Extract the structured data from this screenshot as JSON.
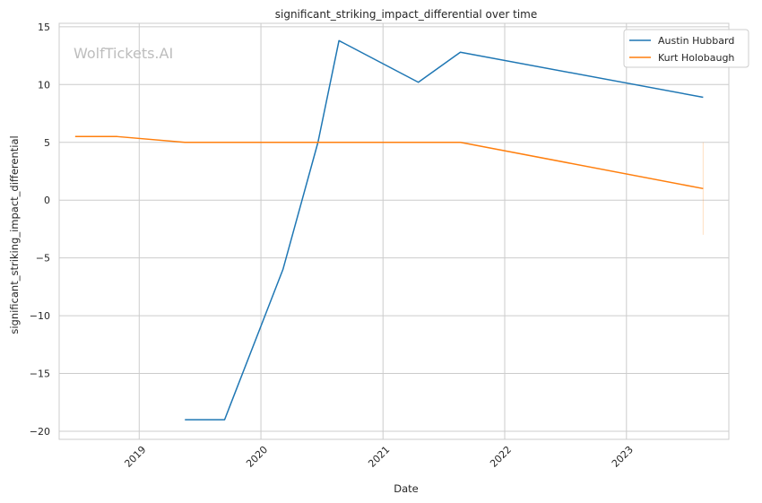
{
  "chart_data": {
    "type": "line",
    "title": "significant_striking_impact_differential over time",
    "xlabel": "Date",
    "ylabel": "significant_striking_impact_differential",
    "watermark": "WolfTickets.AI",
    "x_ticks": [
      "2019",
      "2020",
      "2021",
      "2022",
      "2023"
    ],
    "y_ticks": [
      15,
      10,
      5,
      0,
      -5,
      -10,
      -15,
      -20
    ],
    "xlim": [
      "2018-05-06",
      "2023-11-04"
    ],
    "ylim": [
      -20.7,
      15.3
    ],
    "grid": true,
    "legend_position": "top-right",
    "series": [
      {
        "name": "Austin Hubbard",
        "color": "#1f77b4",
        "points": [
          {
            "x": "2019-05-18",
            "y": -19
          },
          {
            "x": "2019-09-14",
            "y": -19
          },
          {
            "x": "2020-03-07",
            "y": -6
          },
          {
            "x": "2020-06-20",
            "y": 5
          },
          {
            "x": "2020-08-22",
            "y": 13.8
          },
          {
            "x": "2021-04-17",
            "y": 10.2
          },
          {
            "x": "2021-08-21",
            "y": 12.8
          },
          {
            "x": "2023-08-19",
            "y": 8.9
          }
        ]
      },
      {
        "name": "Kurt Holobaugh",
        "color": "#ff7f0e",
        "points": [
          {
            "x": "2018-06-23",
            "y": 5.5
          },
          {
            "x": "2018-10-27",
            "y": 5.5
          },
          {
            "x": "2019-05-18",
            "y": 5
          },
          {
            "x": "2021-08-21",
            "y": 5
          },
          {
            "x": "2023-08-19",
            "y": 1
          }
        ],
        "error_band": {
          "x": "2023-08-19",
          "low": -3,
          "high": 5
        }
      }
    ]
  }
}
